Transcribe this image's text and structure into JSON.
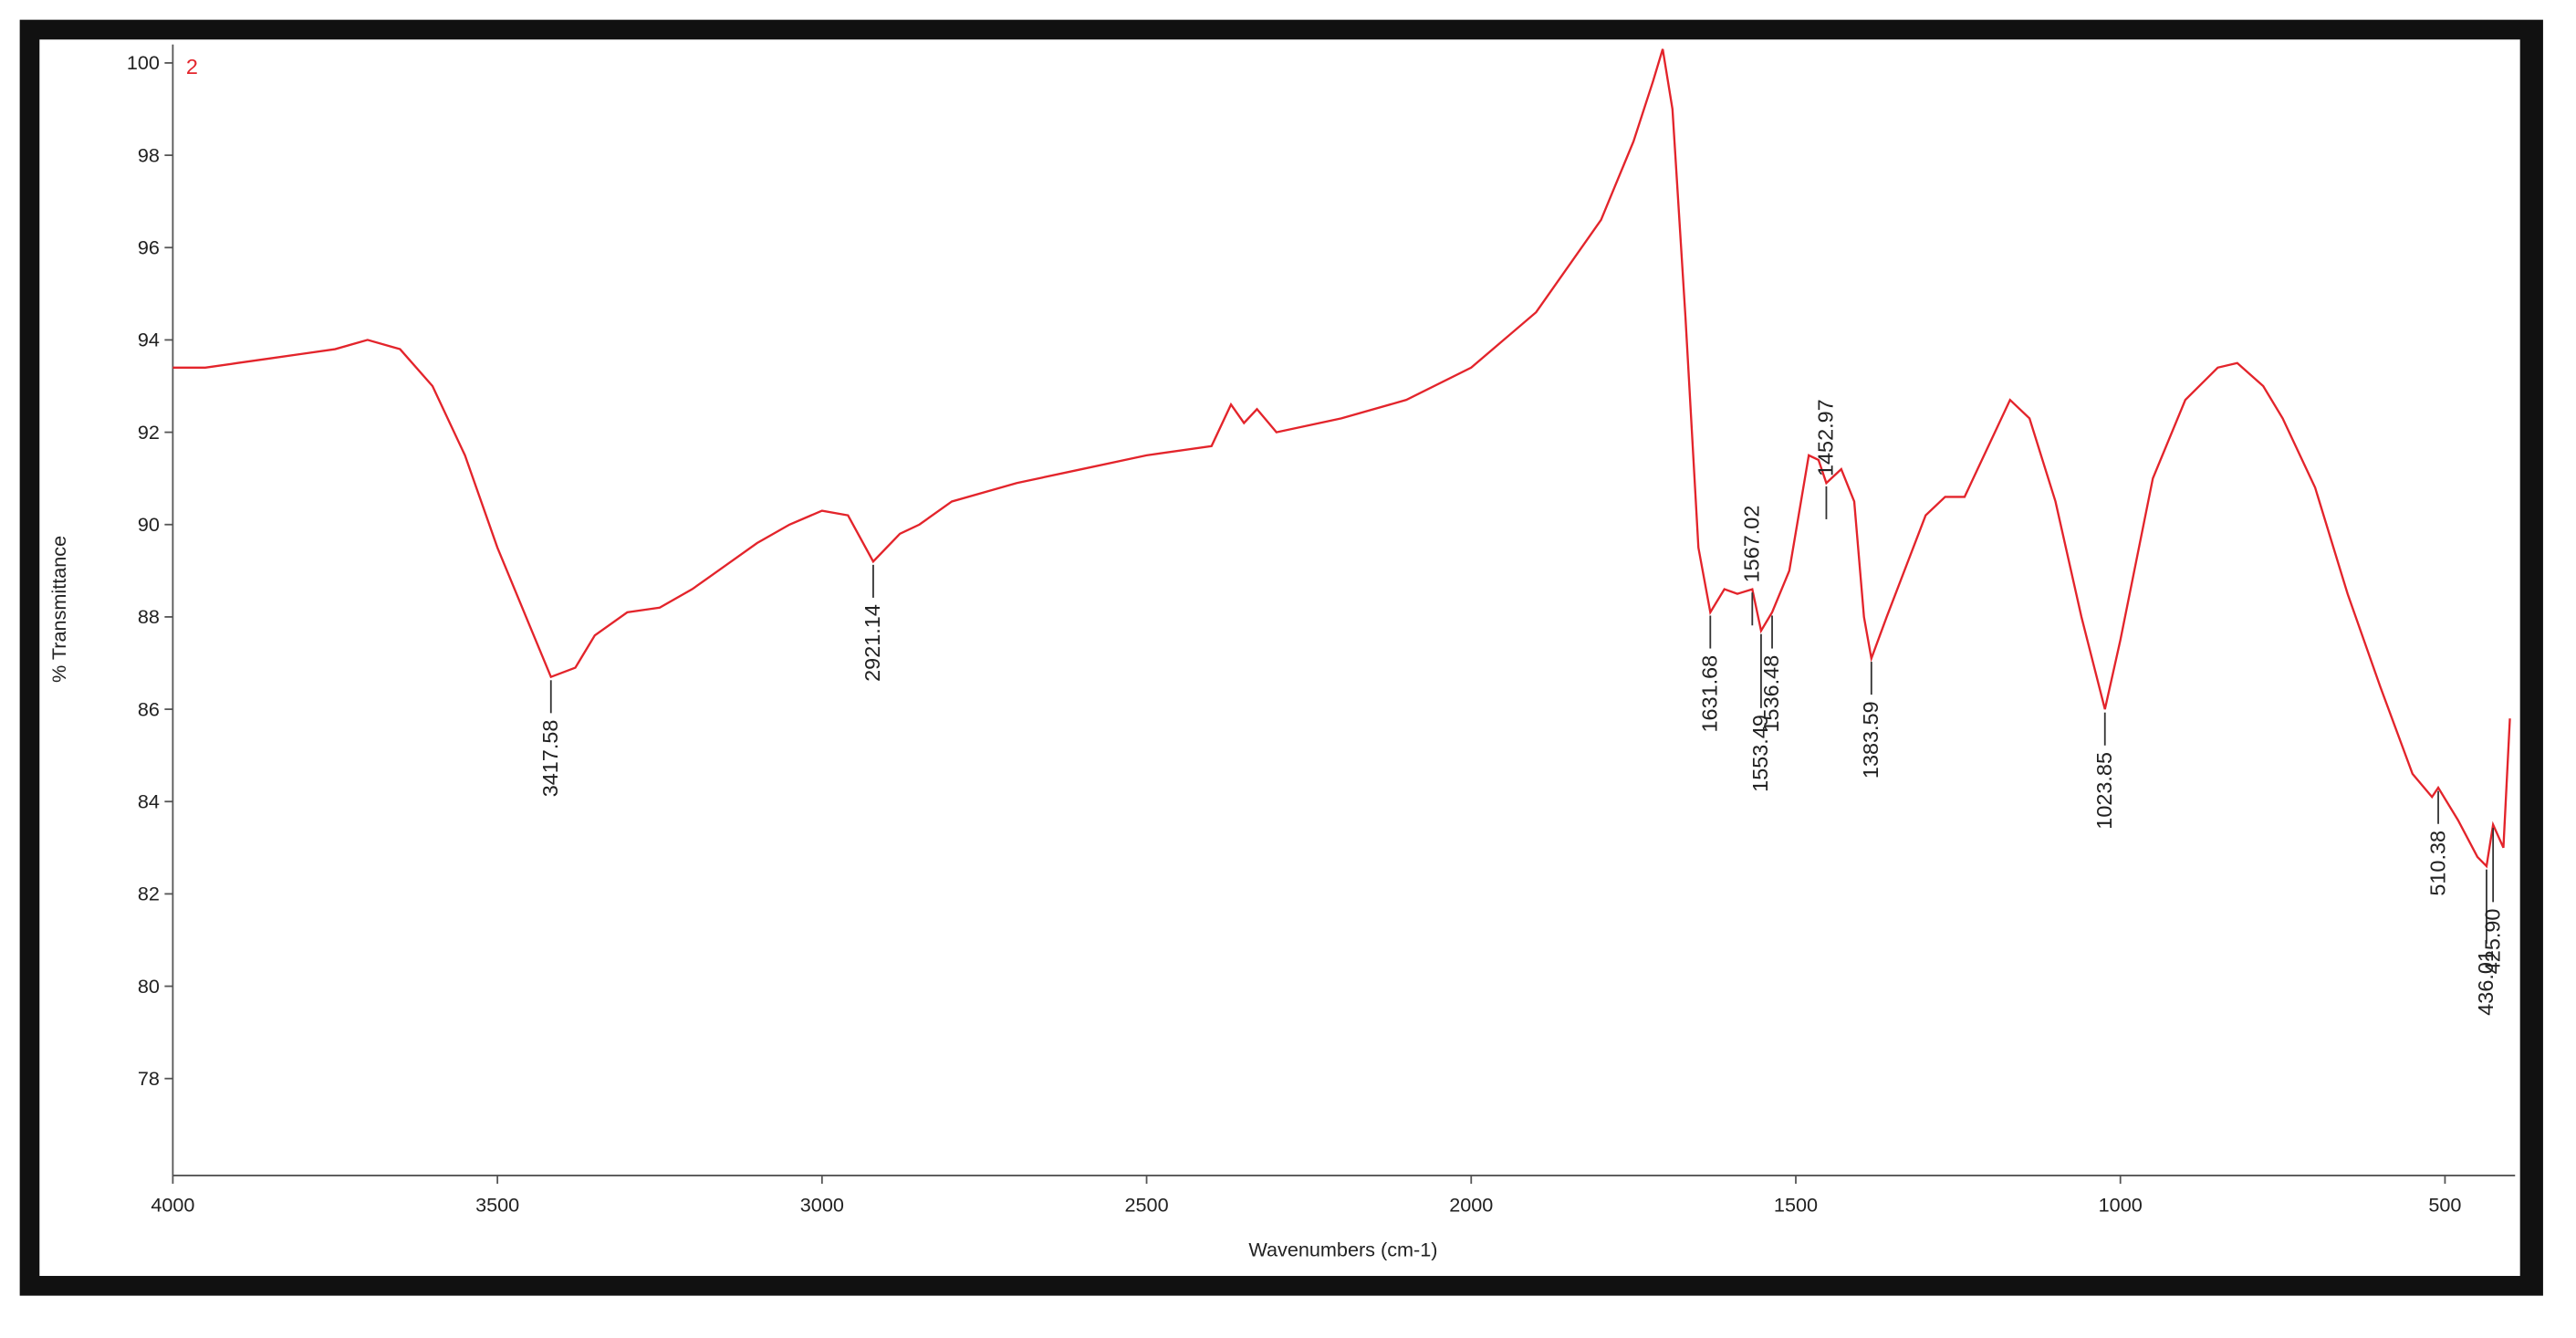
{
  "chart_data": {
    "type": "line",
    "xlabel": "Wavenumbers (cm-1)",
    "ylabel": "% Transmittance",
    "x": [
      4000,
      3950,
      3900,
      3850,
      3800,
      3750,
      3700,
      3650,
      3600,
      3550,
      3500,
      3450,
      3417.58,
      3380,
      3350,
      3300,
      3250,
      3200,
      3150,
      3100,
      3050,
      3000,
      2960,
      2921.14,
      2880,
      2850,
      2800,
      2700,
      2600,
      2500,
      2400,
      2370,
      2350,
      2330,
      2300,
      2200,
      2100,
      2000,
      1900,
      1800,
      1750,
      1720,
      1705,
      1690,
      1670,
      1650,
      1631.68,
      1610,
      1590,
      1567.02,
      1553.49,
      1536.48,
      1510,
      1480,
      1465,
      1452.97,
      1430,
      1410,
      1395,
      1383.59,
      1360,
      1300,
      1270,
      1240,
      1200,
      1170,
      1140,
      1100,
      1060,
      1023.85,
      1000,
      950,
      900,
      850,
      820,
      780,
      750,
      700,
      650,
      600,
      550,
      520,
      510.38,
      480,
      450,
      436.01,
      425.9,
      410,
      400
    ],
    "series": [
      {
        "name": "2",
        "color": "#e3242b",
        "values": [
          93.4,
          93.4,
          93.5,
          93.6,
          93.7,
          93.8,
          94.0,
          93.8,
          93.0,
          91.5,
          89.5,
          87.8,
          86.7,
          86.9,
          87.6,
          88.1,
          88.2,
          88.6,
          89.1,
          89.6,
          90.0,
          90.3,
          90.2,
          89.2,
          89.8,
          90.0,
          90.5,
          90.9,
          91.2,
          91.5,
          91.7,
          92.6,
          92.2,
          92.5,
          92.0,
          92.3,
          92.7,
          93.4,
          94.6,
          96.6,
          98.3,
          99.6,
          100.3,
          99.0,
          94.5,
          89.5,
          88.1,
          88.6,
          88.5,
          88.6,
          87.7,
          88.1,
          89.0,
          91.5,
          91.4,
          90.9,
          91.2,
          90.5,
          88.0,
          87.1,
          88.0,
          90.2,
          90.6,
          90.6,
          91.8,
          92.7,
          92.3,
          90.5,
          88.0,
          86.0,
          87.5,
          91.0,
          92.7,
          93.4,
          93.5,
          93.0,
          92.3,
          90.8,
          88.5,
          86.5,
          84.6,
          84.1,
          84.3,
          83.6,
          82.8,
          82.6,
          83.5,
          83.0,
          85.8
        ]
      }
    ],
    "xlim": [
      4000,
      392
    ],
    "ylim": [
      75.9,
      100.4
    ],
    "xticks": [
      4000,
      3500,
      3000,
      2500,
      2000,
      1500,
      1000,
      500
    ],
    "yticks": [
      78,
      80,
      82,
      84,
      86,
      88,
      90,
      92,
      94,
      96,
      98,
      100
    ],
    "annotations": [
      {
        "x": 3417.58,
        "label": "3417.58"
      },
      {
        "x": 2921.14,
        "label": "2921.14"
      },
      {
        "x": 1631.68,
        "label": "1631.68"
      },
      {
        "x": 1567.02,
        "label": "1567.02"
      },
      {
        "x": 1553.49,
        "label": "1553.49"
      },
      {
        "x": 1536.48,
        "label": "1536.48"
      },
      {
        "x": 1452.97,
        "label": "1452.97"
      },
      {
        "x": 1383.59,
        "label": "1383.59"
      },
      {
        "x": 1023.85,
        "label": "1023.85"
      },
      {
        "x": 510.38,
        "label": "510.38"
      },
      {
        "x": 436.01,
        "label": "436.01"
      },
      {
        "x": 425.9,
        "label": "425.90"
      }
    ]
  }
}
